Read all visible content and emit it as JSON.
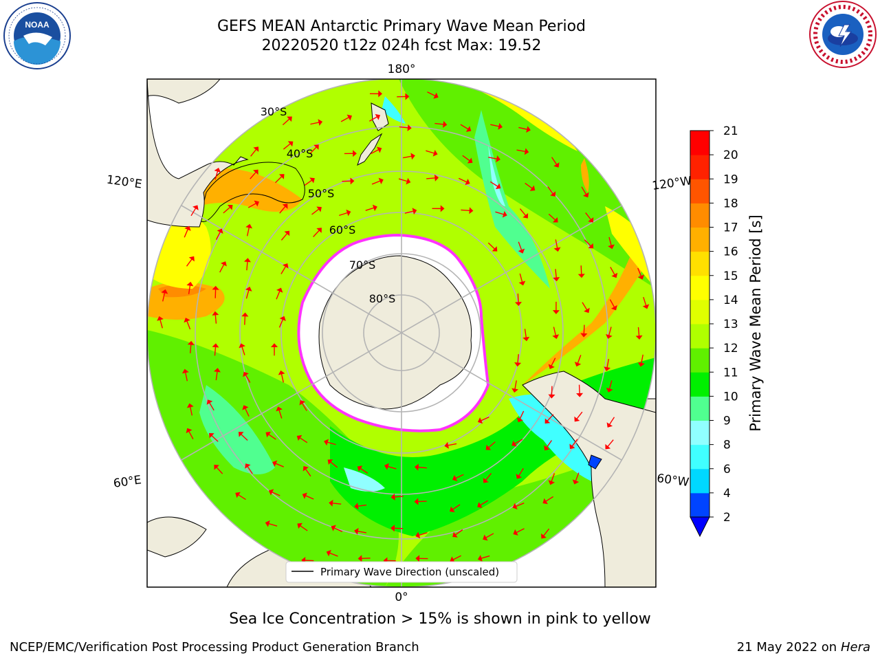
{
  "header": {
    "title_line1": "GEFS MEAN Antarctic Primary Wave Mean Period",
    "title_line2": "20220520 t12z 024h fcst   Max: 19.52"
  },
  "logos": {
    "left": "NOAA",
    "right": "NATIONAL WEATHER SERVICE"
  },
  "map": {
    "projection": "south-polar-stereographic",
    "lon_labels": {
      "top": "180°",
      "bottom": "0°",
      "upper_left": "120°E",
      "lower_left": "60°E",
      "upper_right": "120°W",
      "lower_right": "60°W"
    },
    "lat_labels": [
      "30°S",
      "40°S",
      "50°S",
      "60°S",
      "70°S",
      "80°S"
    ],
    "legend": "Primary Wave Direction (unscaled)",
    "colors": {
      "land": "#efecdc",
      "ice": "#ffffff",
      "ice_edge": "#ff33ff",
      "arrow": "#ff0000"
    }
  },
  "colorbar": {
    "label": "Primary Wave Mean Period [s]",
    "ticks": [
      "2",
      "4",
      "6",
      "8",
      "9",
      "10",
      "11",
      "12",
      "13",
      "14",
      "15",
      "16",
      "17",
      "18",
      "19",
      "20",
      "21"
    ],
    "colors": [
      "#0044ff",
      "#00d8ff",
      "#40ffff",
      "#90ffff",
      "#50ff90",
      "#00f000",
      "#60f000",
      "#b0ff00",
      "#e0ff00",
      "#ffff00",
      "#ffe000",
      "#ffb000",
      "#ff8c00",
      "#ff5500",
      "#ff2200",
      "#ff0000"
    ],
    "extend_color": "#0000ff"
  },
  "caption": "Sea Ice Concentration > 15% is shown in pink to yellow",
  "footer": {
    "left": "NCEP/EMC/Verification Post Processing Product Generation Branch",
    "date": "21 May 2022 on",
    "machine": "Hera"
  }
}
